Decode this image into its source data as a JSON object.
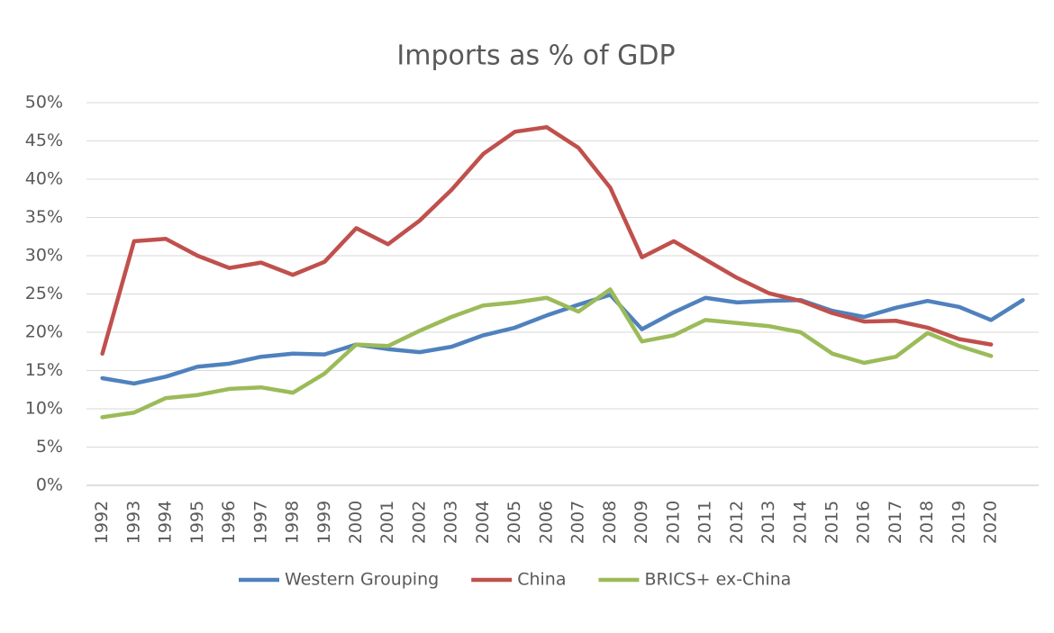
{
  "chart_data": {
    "type": "line",
    "title": "Imports as % of GDP",
    "categories": [
      "1992",
      "1993",
      "1994",
      "1995",
      "1996",
      "1997",
      "1998",
      "1999",
      "2000",
      "2001",
      "2002",
      "2003",
      "2004",
      "2005",
      "2006",
      "2007",
      "2008",
      "2009",
      "2010",
      "2011",
      "2012",
      "2013",
      "2014",
      "2015",
      "2016",
      "2017",
      "2018",
      "2019",
      "2020",
      null
    ],
    "series": [
      {
        "name": "Western Grouping",
        "color": "#4f81bd",
        "values": [
          14.0,
          13.3,
          14.2,
          15.5,
          15.9,
          16.8,
          17.2,
          17.1,
          18.4,
          17.8,
          17.4,
          18.1,
          19.6,
          20.6,
          22.2,
          23.6,
          24.9,
          20.4,
          22.6,
          24.5,
          23.9,
          24.1,
          24.2,
          22.8,
          22.0,
          23.2,
          24.1,
          23.3,
          21.6,
          24.2
        ]
      },
      {
        "name": "China",
        "color": "#c0504d",
        "values": [
          17.2,
          31.9,
          32.2,
          30.0,
          28.4,
          29.1,
          27.5,
          29.2,
          33.6,
          31.5,
          34.6,
          38.6,
          43.3,
          46.2,
          46.8,
          44.1,
          38.9,
          29.8,
          31.9,
          29.5,
          27.1,
          25.1,
          24.1,
          22.5,
          21.4,
          21.5,
          20.6,
          19.1,
          18.4,
          null
        ]
      },
      {
        "name": "BRICS+ ex-China",
        "color": "#9bbb59",
        "values": [
          8.9,
          9.5,
          11.4,
          11.8,
          12.6,
          12.8,
          12.1,
          14.6,
          18.4,
          18.2,
          20.2,
          22.0,
          23.5,
          23.9,
          24.5,
          22.7,
          25.6,
          18.8,
          19.6,
          21.6,
          21.2,
          20.8,
          20.0,
          17.2,
          16.0,
          16.8,
          19.9,
          18.2,
          16.9,
          null
        ]
      }
    ],
    "ylim": [
      0,
      50
    ],
    "yticks": [
      {
        "value": 0,
        "label": "0%"
      },
      {
        "value": 5,
        "label": "5%"
      },
      {
        "value": 10,
        "label": "10%"
      },
      {
        "value": 15,
        "label": "15%"
      },
      {
        "value": 20,
        "label": "20%"
      },
      {
        "value": 25,
        "label": "25%"
      },
      {
        "value": 30,
        "label": "30%"
      },
      {
        "value": 35,
        "label": "35%"
      },
      {
        "value": 40,
        "label": "40%"
      },
      {
        "value": 45,
        "label": "45%"
      },
      {
        "value": 50,
        "label": "50%"
      }
    ],
    "grid": true,
    "legend": "bottom"
  }
}
